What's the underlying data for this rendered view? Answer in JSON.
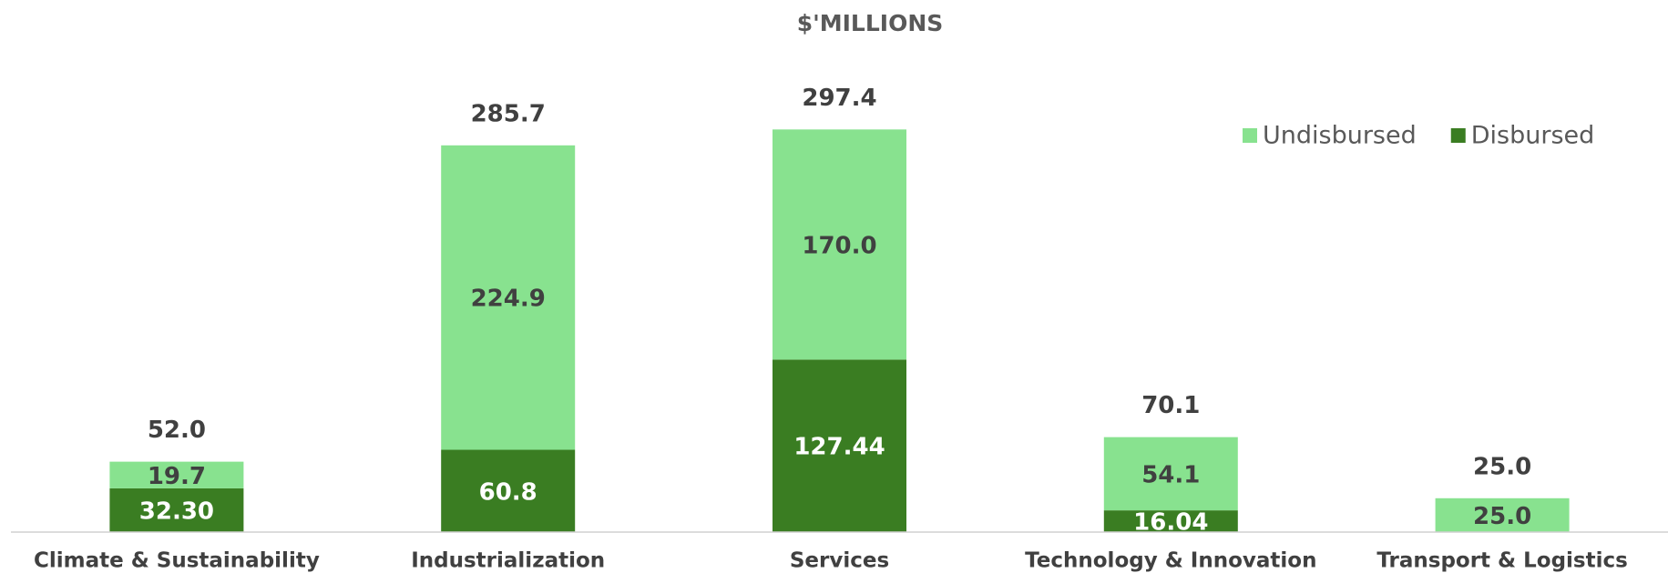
{
  "chart_data": {
    "type": "stacked_bar",
    "title": "$'MILLIONS",
    "categories": [
      "Climate & Sustainability",
      "Industrialization",
      "Services",
      "Technology & Innovation",
      "Transport & Logistics"
    ],
    "series": [
      {
        "name": "Disbursed",
        "color": "#3a7d22",
        "values": [
          32.3,
          60.8,
          127.44,
          16.04,
          0
        ],
        "value_labels": [
          "32.30",
          "60.8",
          "127.44",
          "16.04",
          null
        ]
      },
      {
        "name": "Undisbursed",
        "color": "#88e28f",
        "values": [
          19.7,
          224.9,
          170,
          54.1,
          25
        ],
        "value_labels": [
          "19.7",
          "224.9",
          "170.0",
          "54.1",
          "25.0"
        ]
      }
    ],
    "totals": {
      "values": [
        52,
        285.7,
        297.4,
        70.1,
        25
      ],
      "value_labels": [
        "52.0",
        "285.7",
        "297.4",
        "70.1",
        "25.0"
      ]
    },
    "ylim": [
      0,
      340
    ],
    "legend": "top-right",
    "grid": false
  }
}
